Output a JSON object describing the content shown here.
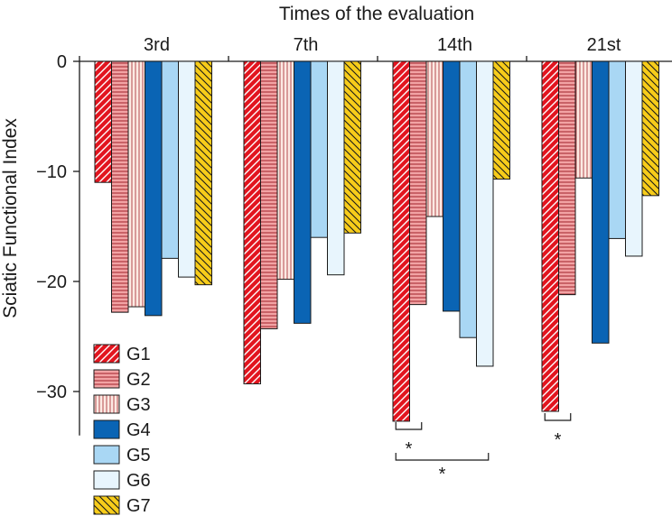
{
  "chart_data": {
    "type": "bar",
    "title": "Times of the evaluation",
    "xlabel": "Times of the evaluation",
    "ylabel": "Sciatic Functional Index",
    "ylim": [
      -34,
      0
    ],
    "yticks": [
      0,
      -10,
      -20,
      -30
    ],
    "ytick_labels": [
      "0",
      "−10",
      "−20",
      "−30"
    ],
    "categories": [
      "3rd",
      "7th",
      "14th",
      "21st"
    ],
    "series": [
      {
        "name": "G1",
        "values": [
          -11.0,
          -29.3,
          -32.7,
          -31.8
        ],
        "color": "#e2151f",
        "pattern": "diag-fwd"
      },
      {
        "name": "G2",
        "values": [
          -22.8,
          -24.3,
          -22.1,
          -21.2
        ],
        "color": "#f2a3a4",
        "pattern": "horizontal"
      },
      {
        "name": "G3",
        "values": [
          -22.3,
          -19.8,
          -14.1,
          -10.6
        ],
        "color": "#fdeae3",
        "pattern": "vertical"
      },
      {
        "name": "G4",
        "values": [
          -23.1,
          -23.8,
          -22.7,
          -25.6
        ],
        "color": "#0a64b4",
        "pattern": "solid"
      },
      {
        "name": "G5",
        "values": [
          -17.9,
          -16.0,
          -25.1,
          -16.1
        ],
        "color": "#a9d7f4",
        "pattern": "solid"
      },
      {
        "name": "G6",
        "values": [
          -19.6,
          -19.4,
          -27.7,
          -17.7
        ],
        "color": "#e8f5fd",
        "pattern": "solid"
      },
      {
        "name": "G7",
        "values": [
          -20.3,
          -15.6,
          -10.7,
          -12.2
        ],
        "color": "#f7cc1a",
        "pattern": "diag-back"
      }
    ],
    "legend_position": "bottom-left",
    "significance": [
      {
        "category": "14th",
        "from": "G1",
        "to": "G2",
        "label": "*"
      },
      {
        "category": "14th",
        "from": "G1",
        "to": "G6",
        "label": "*"
      },
      {
        "category": "21st",
        "from": "G1",
        "to": "G2",
        "label": "*"
      }
    ]
  }
}
